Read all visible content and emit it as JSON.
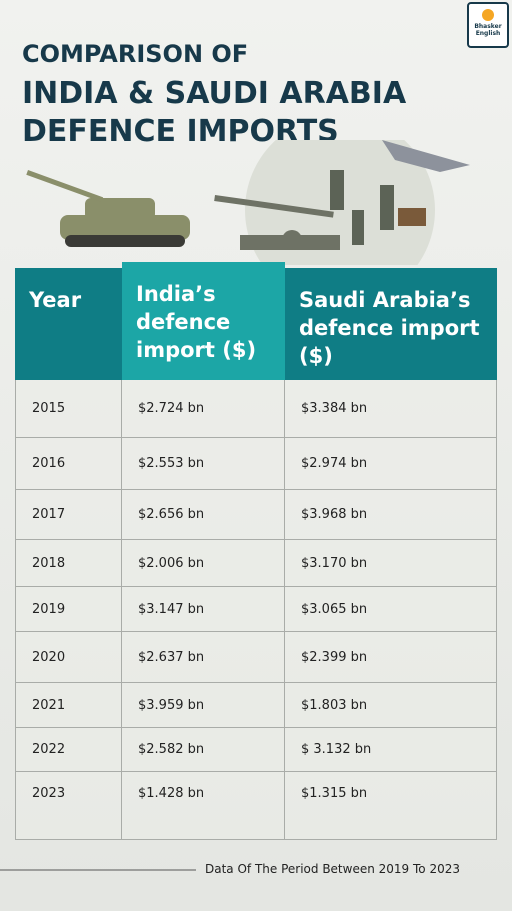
{
  "logo": {
    "line1": "Bhasker",
    "line2": "English"
  },
  "header": {
    "title_lines": [
      "COMPARISON OF",
      "INDIA & SAUDI ARABIA",
      "DEFENCE IMPORTS"
    ]
  },
  "table": {
    "columns": [
      "Year",
      "India’s defence import ($)",
      "Saudi Arabia’s defence import ($)"
    ],
    "rows": [
      [
        "2015",
        "$2.724 bn",
        "$3.384 bn"
      ],
      [
        "2016",
        "$2.553 bn",
        "$2.974 bn"
      ],
      [
        "2017",
        "$2.656 bn",
        "$3.968 bn"
      ],
      [
        "2018",
        "$2.006 bn",
        "$3.170 bn"
      ],
      [
        "2019",
        "$3.147 bn",
        "$3.065 bn"
      ],
      [
        "2020",
        "$2.637 bn",
        "$2.399 bn"
      ],
      [
        "2021",
        "$3.959 bn",
        "$1.803 bn"
      ],
      [
        "2022",
        "$2.582 bn",
        "$ 3.132 bn"
      ],
      [
        "2023",
        "$1.428 bn",
        "$1.315 bn"
      ]
    ]
  },
  "footer": {
    "note": "Data Of The Period Between 2019 To 2023"
  }
}
